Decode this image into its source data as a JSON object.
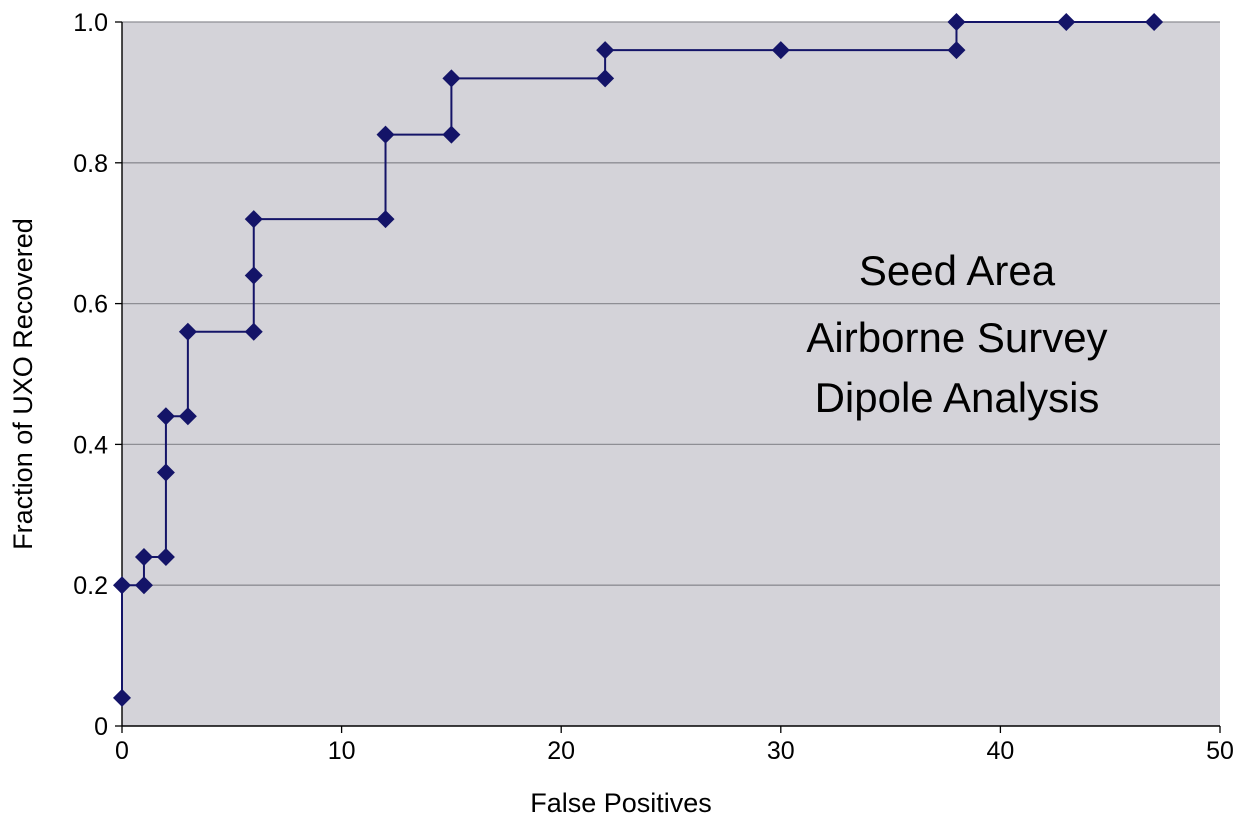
{
  "chart_data": {
    "type": "line",
    "step": true,
    "xlabel": "False Positives",
    "ylabel": "Fraction of UXO Recovered",
    "xlim": [
      0,
      50
    ],
    "ylim": [
      0,
      1.0
    ],
    "x_ticks": [
      "0",
      "10",
      "20",
      "30",
      "40",
      "50"
    ],
    "y_ticks": [
      "0",
      "0.2",
      "0.4",
      "0.6",
      "0.8",
      "1.0"
    ],
    "grid": "horizontal",
    "background": "#d4d3d9",
    "series_color": "#141468",
    "annotation": [
      "Seed Area",
      "Airborne Survey",
      "Dipole Analysis"
    ],
    "series": [
      {
        "x": [
          0,
          0,
          1,
          1,
          2,
          2,
          2,
          3,
          3,
          6,
          6,
          6,
          12,
          12,
          15,
          15,
          22,
          22,
          30,
          38,
          38,
          43,
          47
        ],
        "y": [
          0.04,
          0.2,
          0.2,
          0.24,
          0.24,
          0.36,
          0.44,
          0.44,
          0.56,
          0.56,
          0.64,
          0.72,
          0.72,
          0.84,
          0.84,
          0.92,
          0.92,
          0.96,
          0.96,
          0.96,
          1.0,
          1.0,
          1.0
        ]
      }
    ]
  }
}
